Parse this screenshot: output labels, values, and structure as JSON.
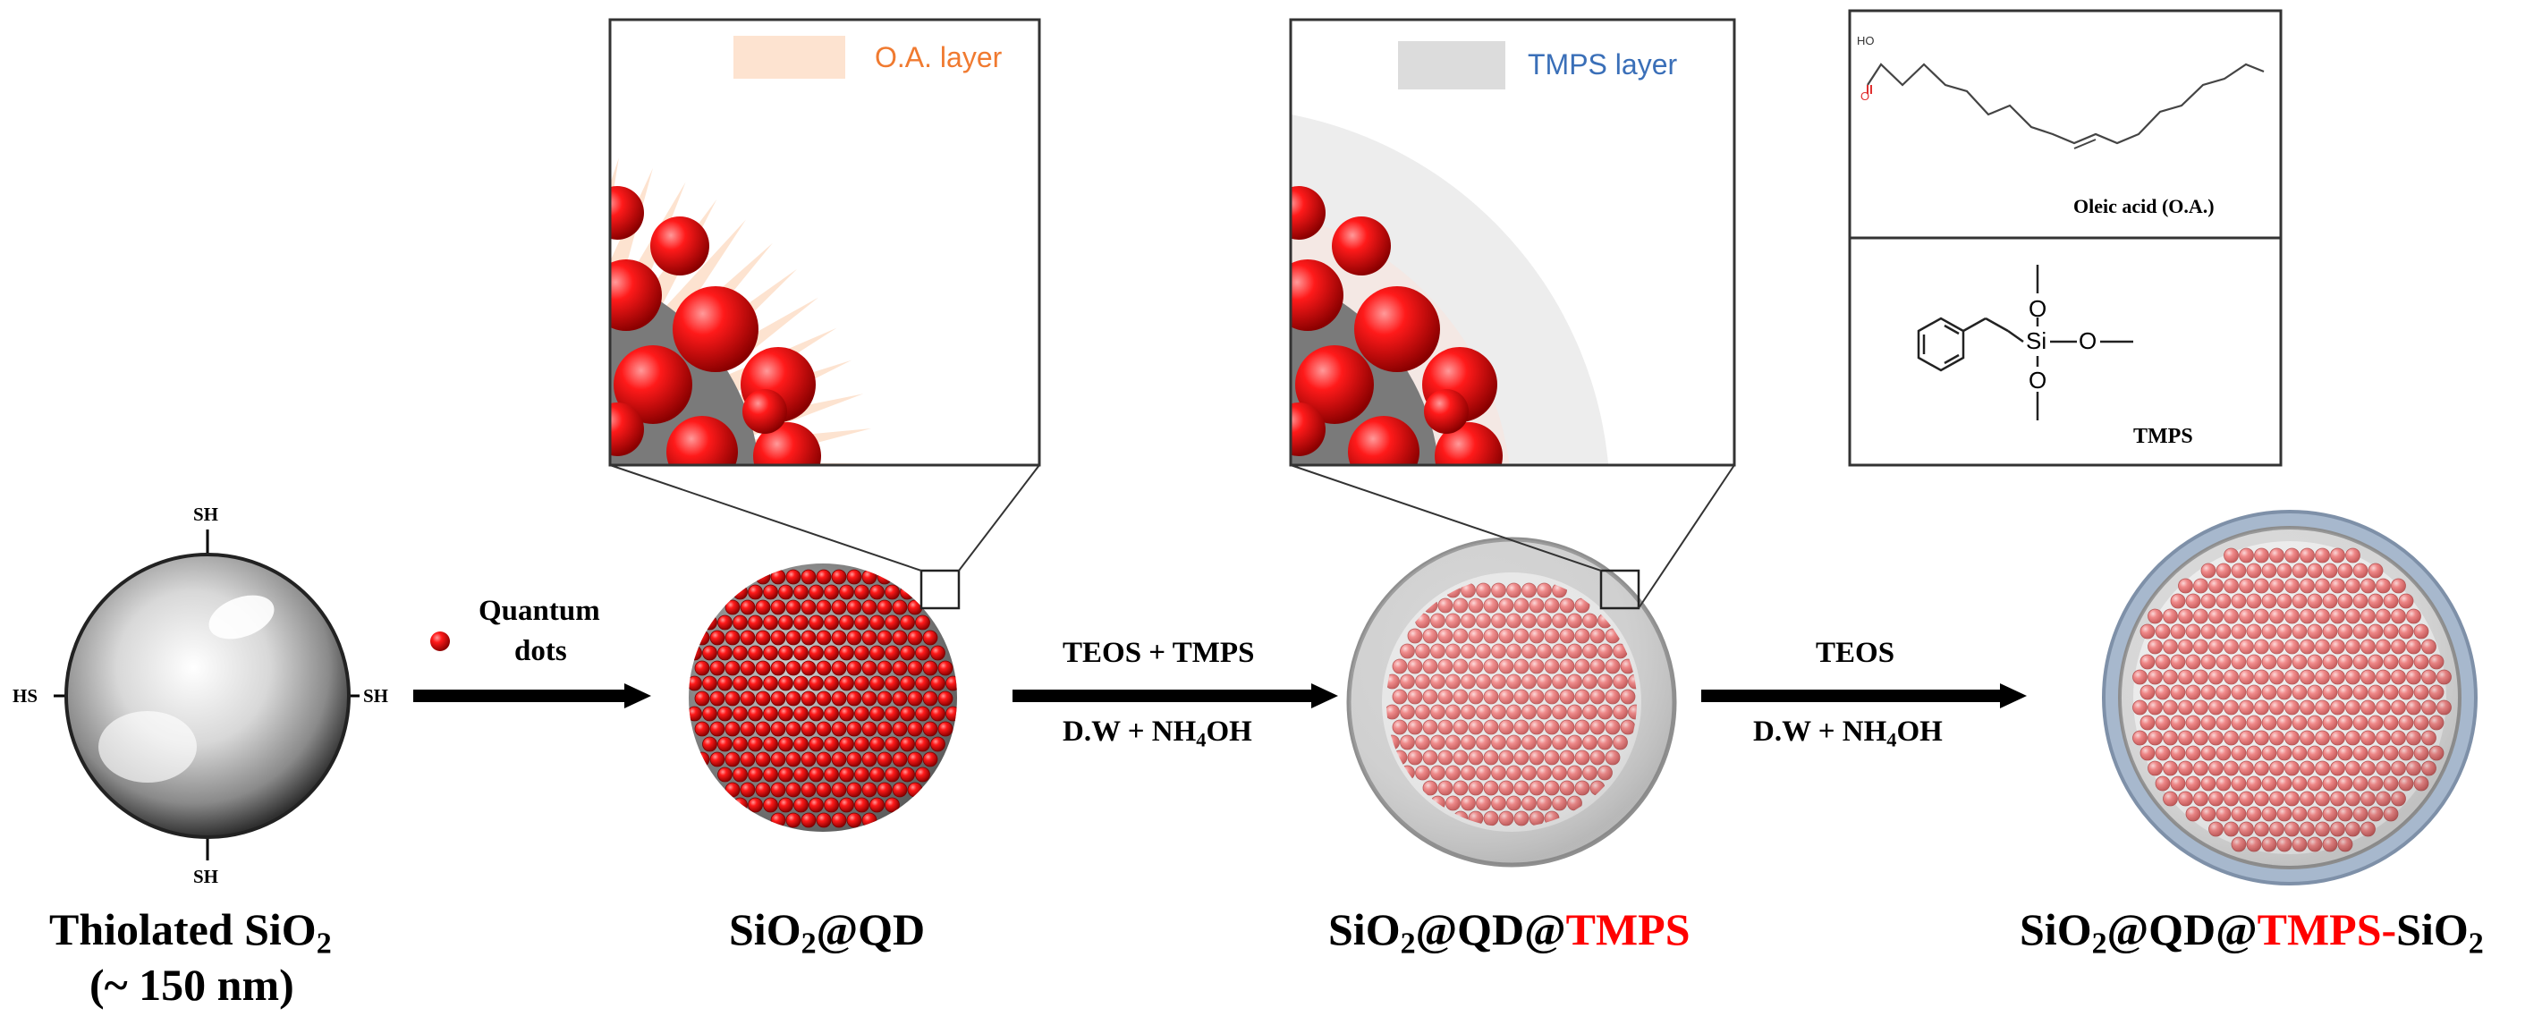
{
  "sphere": {
    "thiol_top": "SH",
    "thiol_right": "SH",
    "thiol_bottom": "SH",
    "thiol_left": "HS",
    "name": "Thiolated SiO",
    "name_sub": "2",
    "size": "(~ 150 nm)"
  },
  "step1": {
    "reagent_line1": "Quantum",
    "reagent_line2": "dots"
  },
  "step2": {
    "above": "TEOS + TMPS",
    "below_prefix": "D.W + NH",
    "below_sub": "4",
    "below_suffix": "OH"
  },
  "step3": {
    "above": "TEOS",
    "below_prefix": "D.W + NH",
    "below_sub": "4",
    "below_suffix": "OH"
  },
  "products": {
    "p1": {
      "a": "SiO",
      "a_sub": "2",
      "b": "@QD"
    },
    "p2": {
      "a": "SiO",
      "a_sub": "2",
      "b": "@QD@",
      "c": "TMPS"
    },
    "p3": {
      "a": "SiO",
      "a_sub": "2",
      "b": "@QD@",
      "c": "TMPS-",
      "d": "SiO",
      "d_sub": "2"
    }
  },
  "insets": {
    "oa_legend": "O.A. layer",
    "tmps_legend": "TMPS layer"
  },
  "structures": {
    "oleic_acid_label": "Oleic acid (O.A.)",
    "oleic_ho": "HO",
    "oleic_o": "O",
    "tmps_label": "TMPS",
    "tmps_si": "Si",
    "tmps_o_top": "O",
    "tmps_o_right": "O",
    "tmps_o_bottom": "O"
  },
  "colors": {
    "qd_red": "#e01010",
    "oa_layer": "#fde3d0",
    "tmps_layer": "#dcdcdc",
    "oa_text": "#f07a30",
    "tmps_text": "#3a6fb8",
    "outer_shell": "#9fb0c6",
    "highlight_text": "#ff0000"
  },
  "icons": {
    "arrow": "right-arrow-icon",
    "sphere": "silica-sphere-icon",
    "qd": "quantum-dot-icon"
  }
}
